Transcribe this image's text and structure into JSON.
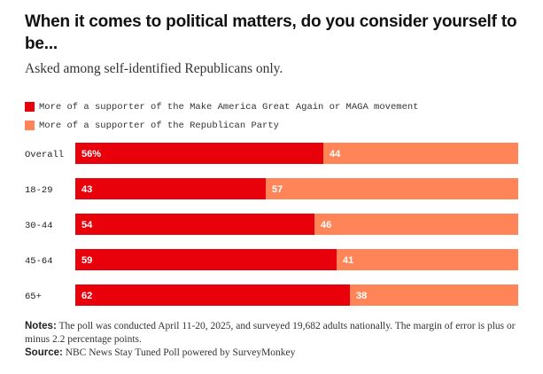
{
  "chart_data": {
    "type": "bar",
    "orientation": "horizontal",
    "stacked": true,
    "title": "When it comes to political matters, do you consider yourself to be...",
    "subtitle": "Asked among self-identified Republicans only.",
    "categories": [
      "Overall",
      "18-29",
      "30-44",
      "45-64",
      "65+"
    ],
    "series": [
      {
        "name": "More of a supporter of the Make America Great Again or MAGA movement",
        "color": "#e8000b",
        "values": [
          56,
          43,
          54,
          59,
          62
        ],
        "labels": [
          "56%",
          "43",
          "54",
          "59",
          "62"
        ]
      },
      {
        "name": "More of a supporter of the Republican Party",
        "color": "#ff8559",
        "values": [
          44,
          57,
          46,
          41,
          38
        ],
        "labels": [
          "44",
          "57",
          "46",
          "41",
          "38"
        ]
      }
    ],
    "xlim": [
      0,
      100
    ],
    "grid": false,
    "legend_position": "top-left"
  },
  "notes": {
    "label": "Notes:",
    "text": "The poll was conducted April 11-20, 2025, and surveyed 19,682 adults nationally. The margin of error is plus or minus 2.2 percentage points."
  },
  "source": {
    "label": "Source:",
    "text": "NBC News Stay Tuned Poll powered by SurveyMonkey"
  }
}
